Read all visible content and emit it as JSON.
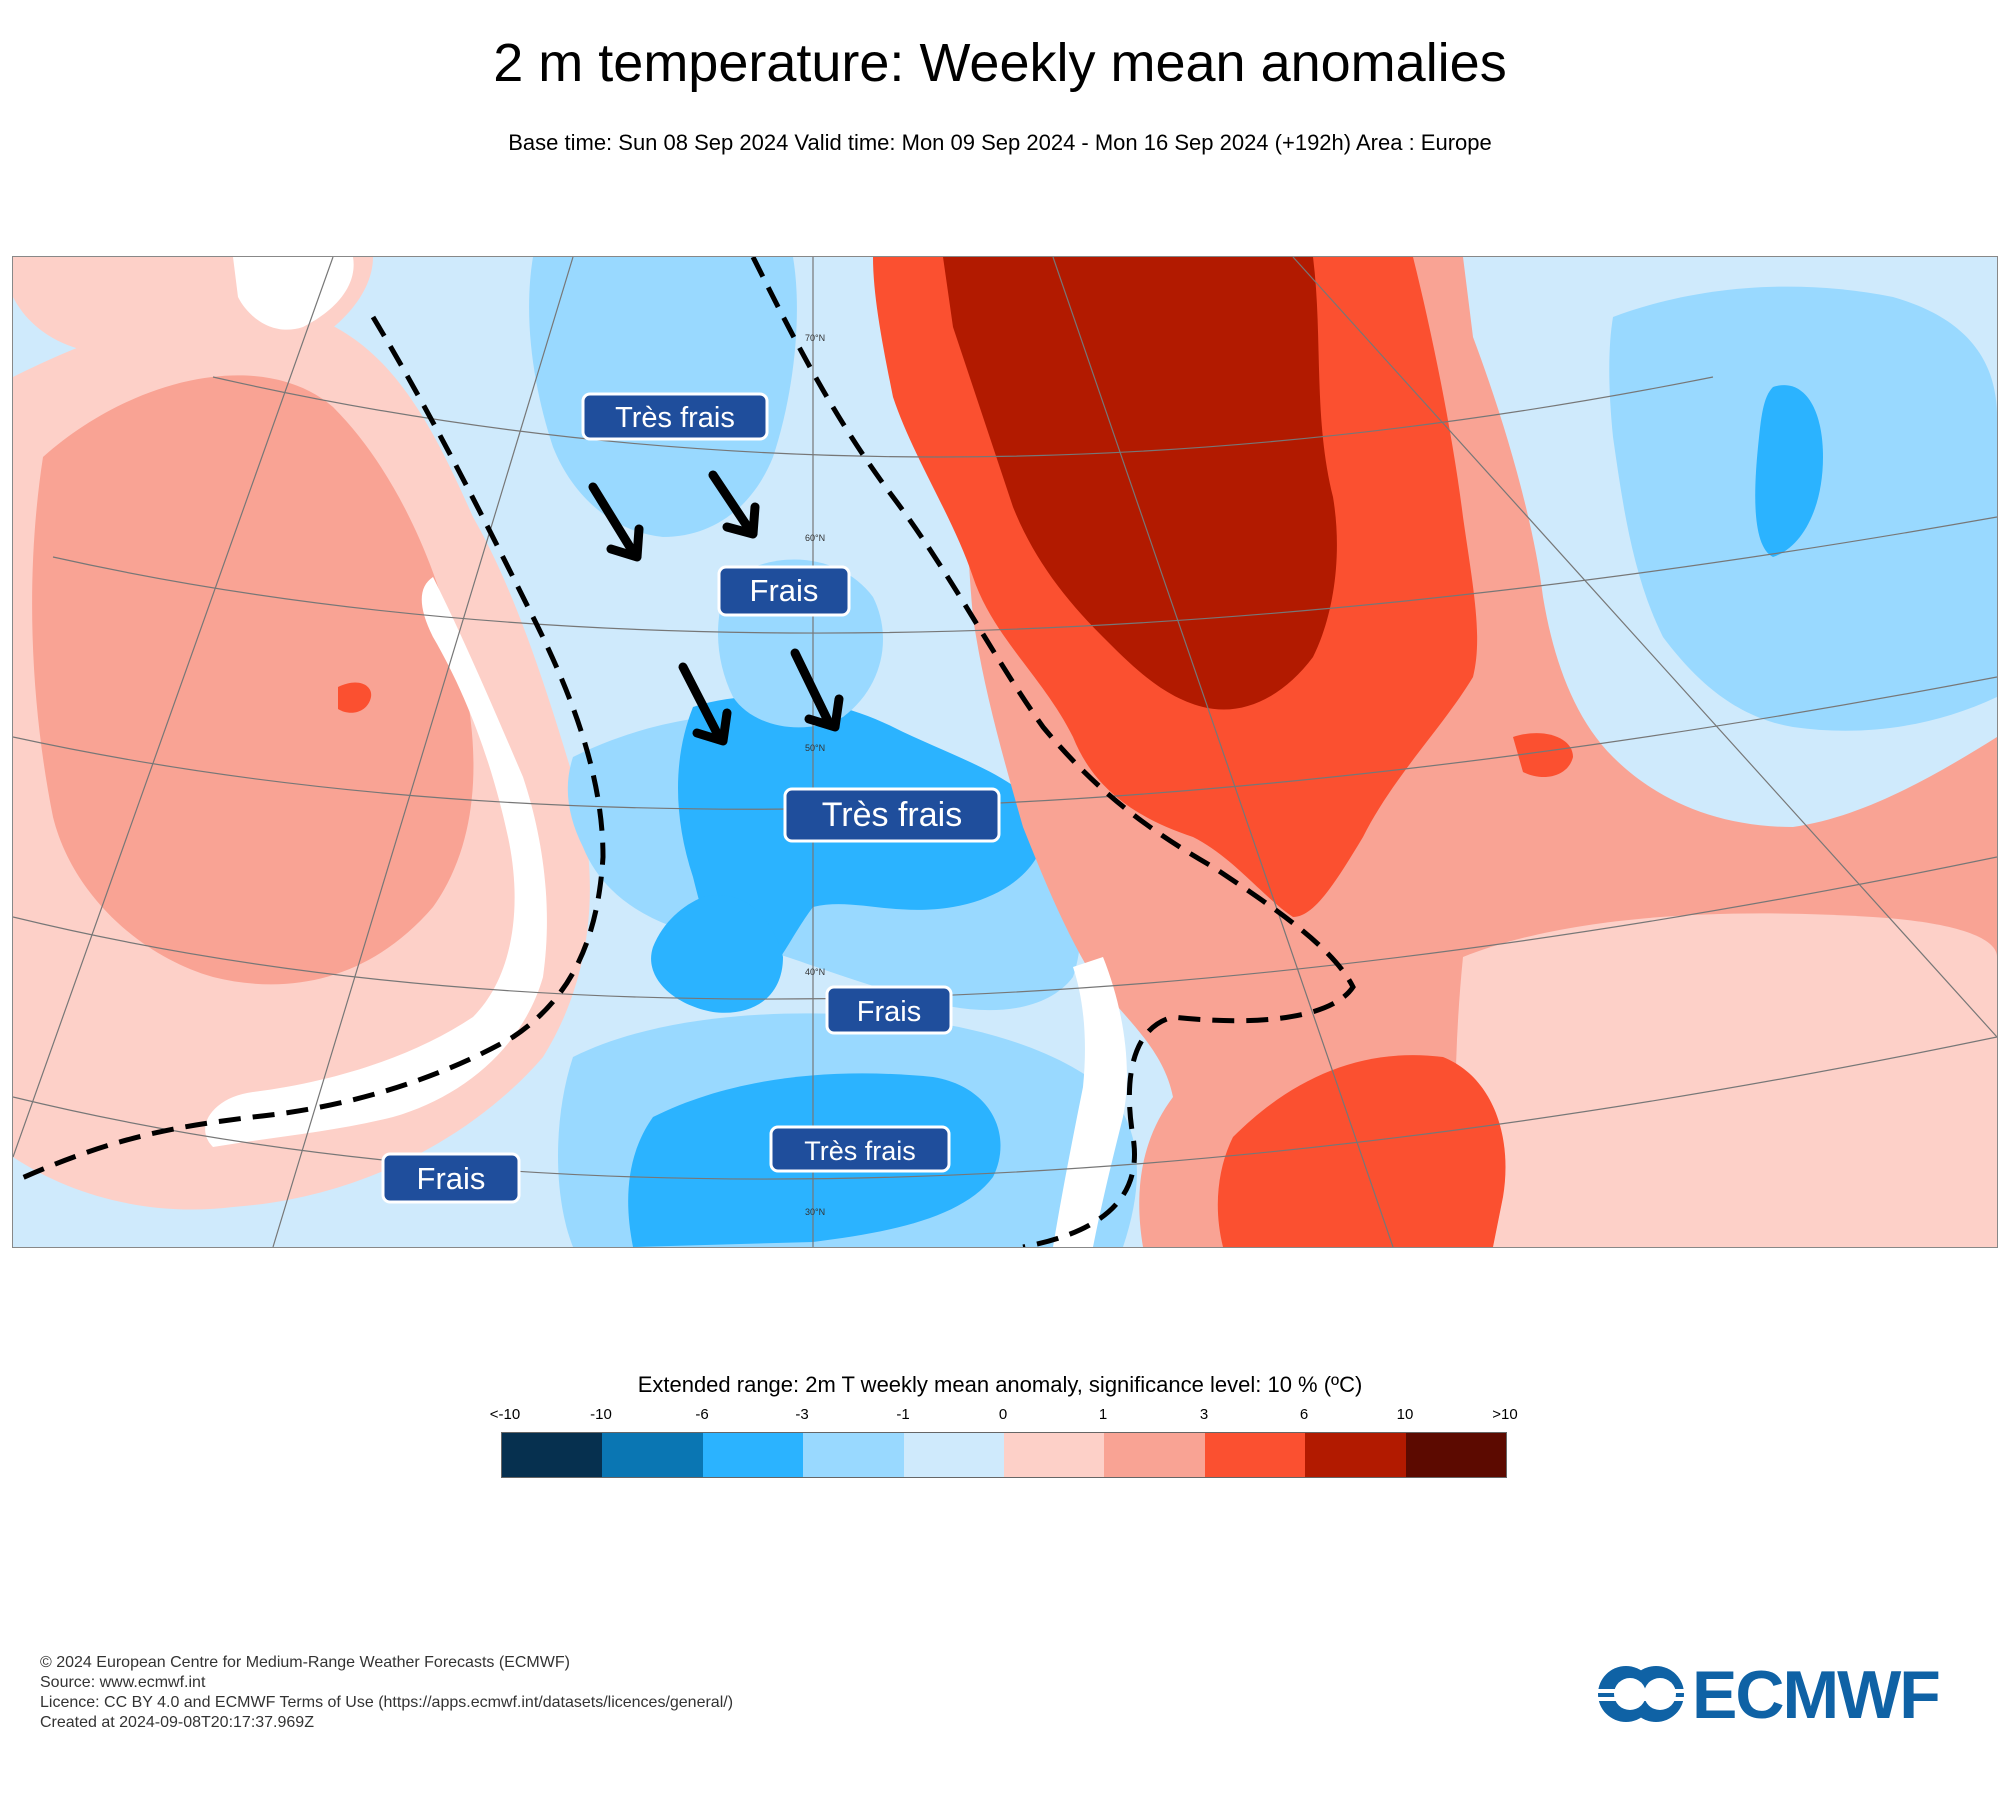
{
  "title": "2 m temperature: Weekly mean anomalies",
  "subtitle": "Base time: Sun 08 Sep 2024 Valid time: Mon 09 Sep 2024 - Mon 16 Sep 2024 (+192h) Area : Europe",
  "map": {
    "latitude_labels": [
      "70°N",
      "60°N",
      "50°N",
      "40°N",
      "30°N"
    ],
    "annotations": [
      {
        "text": "Très frais"
      },
      {
        "text": "Frais"
      },
      {
        "text": "Très frais"
      },
      {
        "text": "Frais"
      },
      {
        "text": "Très frais"
      },
      {
        "text": "Frais"
      }
    ],
    "annotation_color": "#1f4e9c"
  },
  "legend": {
    "title": "Extended range: 2m T weekly mean anomaly, significance level: 10 % (ºC)",
    "ticks": [
      "<-10",
      "-10",
      "-6",
      "-3",
      "-1",
      "0",
      "1",
      "3",
      "6",
      "10",
      ">10"
    ],
    "colors": [
      "#06304f",
      "#0a76b3",
      "#2bb3ff",
      "#99d9ff",
      "#cfeafc",
      "#fdd0c8",
      "#f9a394",
      "#fb5030",
      "#b21a00",
      "#5c0a00"
    ]
  },
  "footer": {
    "line1": "© 2024 European Centre for Medium-Range Weather Forecasts (ECMWF)",
    "line2": "Source: www.ecmwf.int",
    "line3": "Licence: CC BY 4.0 and ECMWF Terms of Use (https://apps.ecmwf.int/datasets/licences/general/)",
    "line4": "Created at 2024-09-08T20:17:37.969Z"
  },
  "logo": {
    "text": "ECMWF",
    "color": "#0f62a5"
  }
}
